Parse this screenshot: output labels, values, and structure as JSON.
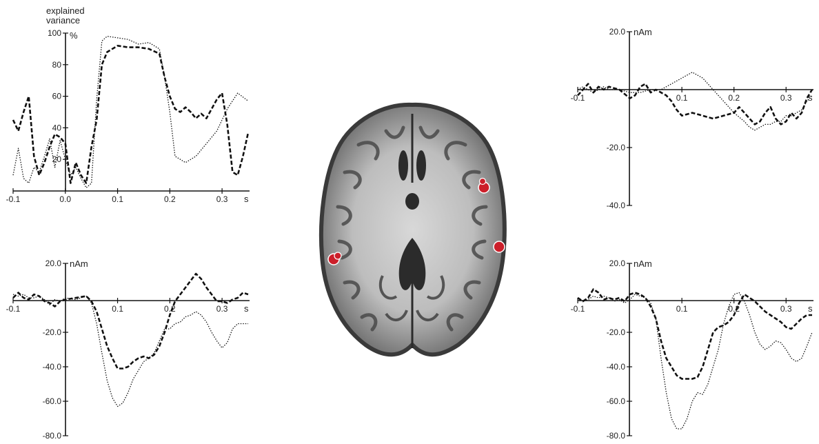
{
  "chart_data": [
    {
      "type": "line",
      "panel": "top-left",
      "ylabel_lines": [
        "explained",
        "variance"
      ],
      "yunit": "%",
      "xunit": "s",
      "xlim": [
        -0.1,
        0.35
      ],
      "ylim": [
        0,
        100
      ],
      "xticks": [
        -0.1,
        0.0,
        0.1,
        0.2,
        0.3
      ],
      "xtick_labels": [
        "-0.1",
        "0.0",
        "0.1",
        "0.2",
        "0.3"
      ],
      "yticks": [
        20,
        40,
        60,
        80,
        100
      ],
      "ytick_labels": [
        "20",
        "40",
        "60",
        "80",
        "100"
      ],
      "series": [
        {
          "style": "dashed",
          "x": [
            -0.1,
            -0.09,
            -0.08,
            -0.07,
            -0.06,
            -0.05,
            -0.04,
            -0.03,
            -0.02,
            -0.01,
            0.0,
            0.01,
            0.02,
            0.03,
            0.04,
            0.05,
            0.06,
            0.07,
            0.08,
            0.1,
            0.12,
            0.14,
            0.16,
            0.18,
            0.19,
            0.2,
            0.21,
            0.22,
            0.23,
            0.24,
            0.25,
            0.26,
            0.27,
            0.28,
            0.29,
            0.3,
            0.31,
            0.32,
            0.33,
            0.34,
            0.35
          ],
          "y": [
            45,
            38,
            50,
            60,
            22,
            10,
            18,
            28,
            36,
            34,
            30,
            5,
            18,
            10,
            5,
            28,
            45,
            80,
            88,
            92,
            91,
            91,
            90,
            87,
            72,
            60,
            52,
            50,
            53,
            50,
            46,
            49,
            46,
            52,
            58,
            62,
            42,
            12,
            10,
            22,
            37
          ]
        },
        {
          "style": "dotted",
          "x": [
            -0.1,
            -0.09,
            -0.08,
            -0.07,
            -0.06,
            -0.05,
            -0.04,
            -0.03,
            -0.02,
            -0.01,
            0.0,
            0.01,
            0.02,
            0.03,
            0.04,
            0.05,
            0.06,
            0.07,
            0.08,
            0.1,
            0.12,
            0.14,
            0.16,
            0.18,
            0.19,
            0.2,
            0.21,
            0.22,
            0.23,
            0.25,
            0.27,
            0.29,
            0.31,
            0.33,
            0.35
          ],
          "y": [
            10,
            27,
            8,
            5,
            15,
            12,
            22,
            33,
            15,
            32,
            20,
            10,
            15,
            8,
            2,
            5,
            58,
            95,
            98,
            97,
            96,
            93,
            94,
            90,
            72,
            50,
            22,
            20,
            18,
            22,
            30,
            38,
            52,
            62,
            57
          ]
        }
      ]
    },
    {
      "type": "line",
      "panel": "top-right",
      "yunit": "nAm",
      "xunit": "s",
      "xlim": [
        -0.1,
        0.35
      ],
      "ylim": [
        -40,
        20
      ],
      "xticks": [
        -0.1,
        0.1,
        0.2,
        0.3
      ],
      "xtick_labels": [
        "-0.1",
        "0.1",
        "0.2",
        "0.3"
      ],
      "yticks": [
        20,
        -20,
        -40
      ],
      "ytick_labels": [
        "20.0",
        "-20.0",
        "-40.0"
      ],
      "series": [
        {
          "style": "dashed",
          "x": [
            -0.1,
            -0.09,
            -0.08,
            -0.07,
            -0.06,
            -0.05,
            -0.04,
            -0.02,
            0.0,
            0.01,
            0.02,
            0.03,
            0.04,
            0.05,
            0.06,
            0.07,
            0.08,
            0.09,
            0.1,
            0.12,
            0.14,
            0.16,
            0.18,
            0.2,
            0.21,
            0.22,
            0.23,
            0.24,
            0.25,
            0.26,
            0.27,
            0.28,
            0.29,
            0.3,
            0.31,
            0.32,
            0.33,
            0.34,
            0.35
          ],
          "y": [
            -2,
            0,
            2,
            -1,
            1,
            0,
            1,
            0,
            -3,
            -2,
            1,
            2,
            -1,
            0,
            -1,
            -2,
            -4,
            -7,
            -9,
            -8,
            -9,
            -10,
            -9,
            -8,
            -6,
            -8,
            -10,
            -12,
            -11,
            -8,
            -6,
            -10,
            -12,
            -11,
            -8,
            -10,
            -8,
            -3,
            0
          ]
        },
        {
          "style": "dotted",
          "x": [
            -0.1,
            -0.09,
            -0.08,
            -0.07,
            -0.06,
            -0.05,
            -0.04,
            -0.02,
            0.0,
            0.02,
            0.04,
            0.06,
            0.08,
            0.1,
            0.12,
            0.14,
            0.16,
            0.18,
            0.2,
            0.22,
            0.23,
            0.24,
            0.25,
            0.26,
            0.27,
            0.28,
            0.29,
            0.3,
            0.31,
            0.32,
            0.33,
            0.34,
            0.35
          ],
          "y": [
            0,
            1,
            0,
            -1,
            0,
            1,
            0,
            0,
            -1,
            -1,
            0,
            0,
            2,
            4,
            6,
            4,
            0,
            -4,
            -8,
            -11,
            -13,
            -14,
            -13,
            -12,
            -12,
            -11,
            -11,
            -9,
            -9,
            -8,
            -7,
            -4,
            -2
          ]
        }
      ]
    },
    {
      "type": "line",
      "panel": "bottom-left",
      "yunit": "nAm",
      "xunit": "s",
      "xlim": [
        -0.1,
        0.35
      ],
      "ylim": [
        -80,
        20
      ],
      "xticks": [
        -0.1,
        0.1,
        0.2,
        0.3
      ],
      "xtick_labels": [
        "-0.1",
        "0.1",
        "0.2",
        "0.3"
      ],
      "yticks": [
        20,
        -20,
        -40,
        -60,
        -80
      ],
      "ytick_labels": [
        "20.0",
        "-20.0",
        "-40.0",
        "-60.0",
        "-80.0"
      ],
      "series": [
        {
          "style": "dashed",
          "x": [
            -0.1,
            -0.09,
            -0.08,
            -0.07,
            -0.06,
            -0.05,
            -0.04,
            -0.03,
            -0.02,
            -0.01,
            0.0,
            0.02,
            0.04,
            0.05,
            0.06,
            0.07,
            0.08,
            0.09,
            0.1,
            0.11,
            0.12,
            0.13,
            0.14,
            0.15,
            0.16,
            0.17,
            0.18,
            0.19,
            0.2,
            0.21,
            0.22,
            0.23,
            0.24,
            0.25,
            0.26,
            0.27,
            0.28,
            0.29,
            0.3,
            0.31,
            0.32,
            0.33,
            0.34,
            0.35
          ],
          "y": [
            0,
            3,
            0,
            -1,
            2,
            1,
            -2,
            -3,
            -5,
            -2,
            -1,
            0,
            1,
            -2,
            -8,
            -18,
            -28,
            -35,
            -41,
            -41,
            -40,
            -37,
            -35,
            -34,
            -35,
            -33,
            -28,
            -20,
            -10,
            -2,
            2,
            6,
            10,
            14,
            11,
            6,
            2,
            -2,
            -2,
            -3,
            -1,
            0,
            3,
            2
          ]
        },
        {
          "style": "dotted",
          "x": [
            -0.1,
            -0.09,
            -0.08,
            -0.07,
            -0.06,
            -0.05,
            -0.04,
            -0.03,
            -0.02,
            -0.01,
            0.0,
            0.02,
            0.04,
            0.05,
            0.06,
            0.07,
            0.08,
            0.09,
            0.1,
            0.11,
            0.12,
            0.13,
            0.14,
            0.15,
            0.16,
            0.17,
            0.18,
            0.19,
            0.2,
            0.21,
            0.22,
            0.23,
            0.24,
            0.25,
            0.26,
            0.27,
            0.28,
            0.29,
            0.3,
            0.31,
            0.32,
            0.33,
            0.34,
            0.35
          ],
          "y": [
            2,
            1,
            2,
            0,
            0,
            1,
            -1,
            -4,
            -1,
            -2,
            0,
            -1,
            1,
            -3,
            -15,
            -32,
            -48,
            -58,
            -63,
            -61,
            -55,
            -47,
            -42,
            -37,
            -35,
            -32,
            -25,
            -18,
            -18,
            -15,
            -14,
            -11,
            -10,
            -8,
            -10,
            -14,
            -20,
            -25,
            -29,
            -26,
            -18,
            -15,
            -15,
            -15
          ]
        }
      ]
    },
    {
      "type": "line",
      "panel": "bottom-right",
      "yunit": "nAm",
      "xunit": "s",
      "xlim": [
        -0.1,
        0.35
      ],
      "ylim": [
        -80,
        20
      ],
      "xticks": [
        -0.1,
        0.1,
        0.2,
        0.3
      ],
      "xtick_labels": [
        "-0.1",
        "0.1",
        "0.2",
        "0.3"
      ],
      "yticks": [
        20,
        -20,
        -40,
        -60,
        -80
      ],
      "ytick_labels": [
        "20.0",
        "-20.0",
        "-40.0",
        "-60.0",
        "-80.0"
      ],
      "series": [
        {
          "style": "dashed",
          "x": [
            -0.1,
            -0.09,
            -0.08,
            -0.07,
            -0.06,
            -0.05,
            -0.04,
            -0.03,
            -0.02,
            -0.01,
            0.0,
            0.01,
            0.02,
            0.03,
            0.04,
            0.05,
            0.06,
            0.07,
            0.08,
            0.09,
            0.1,
            0.11,
            0.12,
            0.13,
            0.14,
            0.15,
            0.16,
            0.17,
            0.18,
            0.19,
            0.2,
            0.21,
            0.22,
            0.23,
            0.24,
            0.25,
            0.26,
            0.27,
            0.28,
            0.29,
            0.3,
            0.31,
            0.32,
            0.33,
            0.34,
            0.35
          ],
          "y": [
            0,
            -2,
            0,
            5,
            3,
            -1,
            0,
            -1,
            0,
            -2,
            2,
            3,
            2,
            0,
            -5,
            -12,
            -25,
            -35,
            -40,
            -45,
            -47,
            -47,
            -47,
            -46,
            -40,
            -30,
            -20,
            -17,
            -16,
            -14,
            -10,
            -3,
            2,
            0,
            -2,
            -5,
            -8,
            -10,
            -12,
            -14,
            -17,
            -18,
            -15,
            -12,
            -10,
            -10
          ]
        },
        {
          "style": "dotted",
          "x": [
            -0.1,
            -0.09,
            -0.08,
            -0.07,
            -0.06,
            -0.05,
            -0.04,
            -0.03,
            -0.02,
            -0.01,
            0.0,
            0.01,
            0.02,
            0.03,
            0.04,
            0.05,
            0.06,
            0.07,
            0.08,
            0.09,
            0.1,
            0.11,
            0.12,
            0.13,
            0.14,
            0.15,
            0.16,
            0.17,
            0.18,
            0.19,
            0.2,
            0.21,
            0.22,
            0.23,
            0.24,
            0.25,
            0.26,
            0.27,
            0.28,
            0.29,
            0.3,
            0.31,
            0.32,
            0.33,
            0.34,
            0.35
          ],
          "y": [
            0,
            -2,
            -1,
            1,
            0,
            1,
            0,
            -2,
            -1,
            -3,
            -1,
            2,
            1,
            0,
            -3,
            -12,
            -35,
            -55,
            -70,
            -76,
            -76,
            -70,
            -60,
            -55,
            -56,
            -50,
            -40,
            -30,
            -15,
            -5,
            2,
            3,
            -2,
            -10,
            -20,
            -27,
            -30,
            -28,
            -25,
            -26,
            -30,
            -35,
            -37,
            -35,
            -28,
            -20
          ]
        }
      ]
    }
  ],
  "brain": {
    "markers": [
      {
        "name": "source-marker-left",
        "color": "#cc1f2a"
      },
      {
        "name": "source-marker-right-upper",
        "color": "#cc1f2a"
      },
      {
        "name": "source-marker-right-lower",
        "color": "#cc1f2a"
      }
    ]
  }
}
